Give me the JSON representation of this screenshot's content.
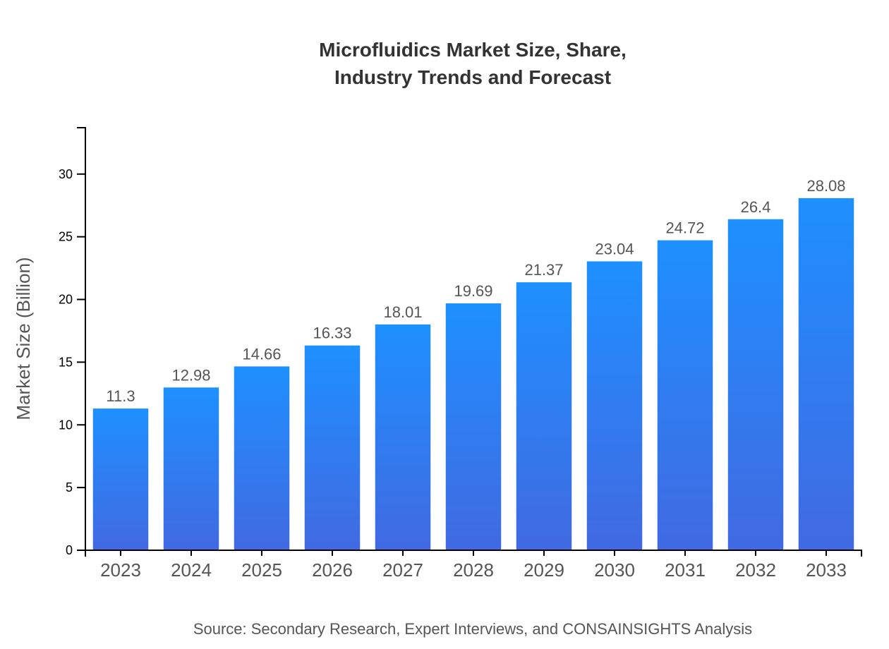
{
  "chart_data": {
    "type": "bar",
    "title_lines": [
      "Microfluidics Market Size, Share,",
      "Industry Trends and Forecast"
    ],
    "xlabel": "",
    "ylabel": "Market Size (Billion)",
    "categories": [
      "2023",
      "2024",
      "2025",
      "2026",
      "2027",
      "2028",
      "2029",
      "2030",
      "2031",
      "2032",
      "2033"
    ],
    "values": [
      11.3,
      12.98,
      14.66,
      16.33,
      18.01,
      19.69,
      21.37,
      23.04,
      24.72,
      26.4,
      28.08
    ],
    "data_labels": [
      "11.3",
      "12.98",
      "14.66",
      "16.33",
      "18.01",
      "19.69",
      "21.37",
      "23.04",
      "24.72",
      "26.4",
      "28.08"
    ],
    "yticks": [
      0,
      5,
      10,
      15,
      20,
      25,
      30
    ],
    "ylim": [
      0,
      33.7
    ],
    "grid": false,
    "legend": "none",
    "colors": {
      "bar_top": "#1e90ff",
      "bar_bottom": "#4169e1"
    },
    "source": "Source: Secondary Research, Expert Interviews, and CONSAINSIGHTS Analysis"
  }
}
